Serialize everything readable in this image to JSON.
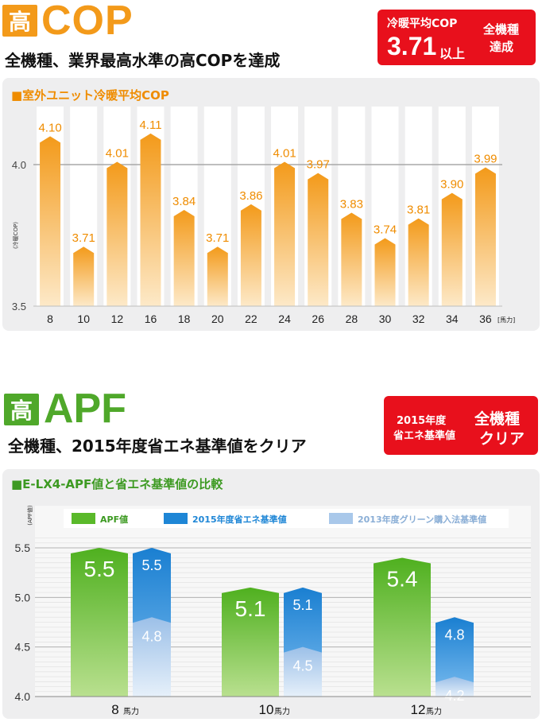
{
  "cop": {
    "badge": "高",
    "title": "COP",
    "subtitle": "全機種、業界最高水準の高COPを達成",
    "highlight": {
      "label": "冷暖平均COP",
      "value": "3.71",
      "suffix": "以上",
      "right": [
        "全機種",
        "達成"
      ]
    },
    "panel_title": "■室外ユニット冷暖平均COP"
  },
  "apf": {
    "badge": "高",
    "title": "APF",
    "subtitle": "全機種、2015年度省エネ基準値をクリア",
    "highlight": {
      "left": [
        "2015年度",
        "省エネ基準値"
      ],
      "right": [
        "全機種",
        "クリア"
      ]
    },
    "panel_title": "■E-LX4-APF値と省エネ基準値の比較"
  },
  "chart_data": [
    {
      "type": "bar",
      "title": "■室外ユニット冷暖平均COP",
      "ylabel": "(冷暖COP)",
      "xunit": "馬力",
      "categories": [
        "8",
        "10",
        "12",
        "16",
        "18",
        "20",
        "22",
        "24",
        "26",
        "28",
        "30",
        "32",
        "34",
        "36"
      ],
      "values": [
        4.1,
        3.71,
        4.01,
        4.11,
        3.84,
        3.71,
        3.86,
        4.01,
        3.97,
        3.83,
        3.74,
        3.81,
        3.9,
        3.99
      ],
      "value_labels": [
        "4.10",
        "3.71",
        "4.01",
        "4.11",
        "3.84",
        "3.71",
        "3.86",
        "4.01",
        "3.97",
        "3.83",
        "3.74",
        "3.81",
        "3.90",
        "3.99"
      ],
      "ylim": [
        3.5,
        4.2
      ],
      "yticks": [
        "3.5",
        "4.0"
      ],
      "colors": {
        "bar_top": "#f39a1a",
        "bar_bottom": "#fde6bf",
        "label": "#ef8c00"
      },
      "grid": "horizontal at 4.0"
    },
    {
      "type": "bar",
      "title": "■E-LX4-APF値と省エネ基準値の比較",
      "ylabel": "(APF値)",
      "categories": [
        "8",
        "10",
        "12"
      ],
      "category_unit": "馬力",
      "ylim": [
        4.0,
        5.6
      ],
      "yticks": [
        "4.0",
        "4.5",
        "5.0",
        "5.5"
      ],
      "legend_position": "top",
      "series": [
        {
          "name": "APF値",
          "values": [
            5.5,
            5.1,
            5.4
          ],
          "labels": [
            "5.5",
            "5.1",
            "5.4"
          ],
          "color": "#5ab92a"
        },
        {
          "name": "2015年度省エネ基準値",
          "values": [
            5.5,
            5.1,
            4.8
          ],
          "labels": [
            "5.5",
            "5.1",
            "4.8"
          ],
          "color": "#1e86d6"
        },
        {
          "name": "2013年度グリーン購入法基準値",
          "values": [
            4.8,
            4.5,
            4.2
          ],
          "labels": [
            "4.8",
            "4.5",
            "4.2"
          ],
          "color": "#a9c8ea"
        }
      ]
    }
  ]
}
